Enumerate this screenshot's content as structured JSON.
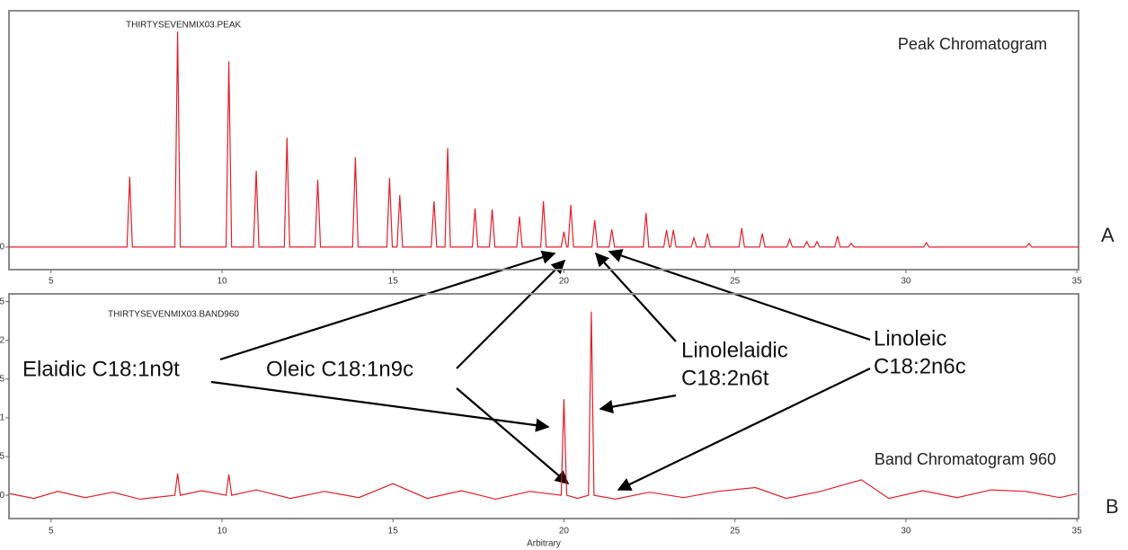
{
  "chart_data": [
    {
      "type": "line",
      "title": "THIRTYSEVENMIX03.PEAK",
      "annotation": "Peak Chromatogram",
      "panel_label": "A",
      "color": "#e0202a",
      "x": [
        3.77,
        7.22,
        7.3,
        7.38,
        8.62,
        8.7,
        8.78,
        10.12,
        10.2,
        10.28,
        10.92,
        11.0,
        11.08,
        11.82,
        11.9,
        11.98,
        12.72,
        12.8,
        12.88,
        13.82,
        13.9,
        13.98,
        14.82,
        14.9,
        14.98,
        15.12,
        15.2,
        15.28,
        16.12,
        16.2,
        16.28,
        16.52,
        16.6,
        16.68,
        17.32,
        17.4,
        17.48,
        17.82,
        17.9,
        17.98,
        18.62,
        18.7,
        18.78,
        19.32,
        19.4,
        19.48,
        19.92,
        20.0,
        20.08,
        20.12,
        20.2,
        20.28,
        20.82,
        20.9,
        20.98,
        21.32,
        21.4,
        21.48,
        22.32,
        22.4,
        22.48,
        22.92,
        23.0,
        23.08,
        23.12,
        23.2,
        23.28,
        23.72,
        23.8,
        23.88,
        24.12,
        24.2,
        24.28,
        25.12,
        25.2,
        25.28,
        25.72,
        25.8,
        25.88,
        26.52,
        26.6,
        26.68,
        27.02,
        27.1,
        27.18,
        27.32,
        27.4,
        27.48,
        27.92,
        28.0,
        28.08,
        28.32,
        28.4,
        28.48,
        30.52,
        30.6,
        30.68,
        33.52,
        33.6,
        33.68,
        35.05
      ],
      "values": [
        0,
        0,
        1.15,
        0,
        0,
        3.53,
        0,
        0,
        3.04,
        0,
        0,
        1.25,
        0,
        0,
        1.79,
        0,
        0,
        1.1,
        0,
        0,
        1.47,
        0,
        0,
        1.13,
        0,
        0,
        0.85,
        0,
        0,
        0.75,
        0,
        0,
        1.62,
        0,
        0,
        0.63,
        0,
        0,
        0.62,
        0,
        0,
        0.5,
        0,
        0,
        0.75,
        0,
        0,
        0.25,
        0,
        0,
        0.69,
        0,
        0,
        0.44,
        0,
        0,
        0.29,
        0,
        0,
        0.56,
        0,
        0,
        0.28,
        0,
        0,
        0.28,
        0,
        0,
        0.15,
        0,
        0,
        0.22,
        0,
        0,
        0.31,
        0,
        0,
        0.22,
        0,
        0,
        0.13,
        0,
        0,
        0.09,
        0,
        0,
        0.09,
        0,
        0,
        0.18,
        0,
        0,
        0.06,
        0,
        0,
        0.07,
        0,
        0,
        0.06,
        0,
        0
      ],
      "xlim": [
        3.77,
        35.05
      ],
      "xticks": [
        5,
        10,
        15,
        20,
        25,
        30,
        35
      ],
      "ylim": [
        -0.37,
        3.87
      ],
      "yticks": [
        0
      ]
    },
    {
      "type": "line",
      "title": "THIRTYSEVENMIX03.BAND960",
      "annotation": "Band Chromatogram 960",
      "panel_label": "B",
      "xlabel": "Arbitrary",
      "color": "#e0202a",
      "x": [
        3.8,
        4.5,
        5.2,
        6.0,
        6.8,
        7.6,
        8.62,
        8.7,
        8.78,
        9.4,
        10.12,
        10.2,
        10.28,
        11.0,
        12.0,
        13.0,
        14.0,
        15.0,
        16.0,
        17.0,
        18.0,
        19.0,
        19.92,
        20.0,
        20.08,
        20.4,
        20.72,
        20.8,
        20.88,
        21.5,
        22.5,
        23.5,
        24.5,
        25.6,
        26.5,
        27.5,
        28.7,
        29.5,
        30.5,
        31.5,
        32.5,
        33.5,
        34.5,
        35.0
      ],
      "values": [
        0.02,
        -0.04,
        0.05,
        -0.03,
        0.04,
        -0.05,
        0,
        0.28,
        0,
        0.06,
        0,
        0.27,
        0,
        0.07,
        -0.04,
        0.05,
        -0.03,
        0.15,
        -0.04,
        0.06,
        -0.05,
        0.05,
        0,
        1.24,
        0,
        -0.04,
        0,
        2.37,
        0,
        -0.05,
        0.04,
        -0.03,
        0.05,
        0.1,
        -0.04,
        0.05,
        0.2,
        -0.04,
        0.06,
        -0.03,
        0.07,
        0.05,
        -0.03,
        0.02
      ],
      "xlim": [
        3.77,
        35.05
      ],
      "xticks": [
        5,
        10,
        15,
        20,
        25,
        30,
        35
      ],
      "ylim": [
        -0.3,
        2.6
      ],
      "yticks": [
        0,
        {
          "value": 0.5,
          "label": "5"
        },
        1,
        {
          "value": 1.5,
          "label": "5"
        },
        2,
        {
          "value": 2.5,
          "label": "5"
        }
      ]
    }
  ],
  "annotations": [
    {
      "text": [
        "Elaidic C18:1n9t"
      ]
    },
    {
      "text": [
        "Oleic C18:1n9c"
      ]
    },
    {
      "text": [
        "Linolelaidic",
        "C18:2n6t"
      ]
    },
    {
      "text": [
        "Linoleic",
        "C18:2n6c"
      ]
    }
  ]
}
